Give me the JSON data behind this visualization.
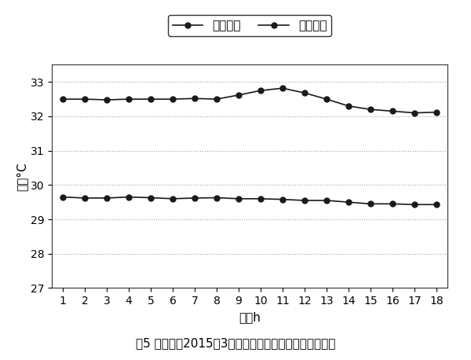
{
  "hours": [
    1,
    2,
    3,
    4,
    5,
    6,
    7,
    8,
    9,
    10,
    11,
    12,
    13,
    14,
    15,
    16,
    17,
    18
  ],
  "supply_temp": [
    32.5,
    32.5,
    32.48,
    32.5,
    32.5,
    32.5,
    32.52,
    32.5,
    32.62,
    32.75,
    32.82,
    32.68,
    32.5,
    32.3,
    32.2,
    32.15,
    32.1,
    32.12
  ],
  "return_temp": [
    29.65,
    29.62,
    29.62,
    29.65,
    29.63,
    29.6,
    29.62,
    29.63,
    29.6,
    29.6,
    29.58,
    29.55,
    29.55,
    29.5,
    29.45,
    29.45,
    29.43,
    29.43
  ],
  "supply_label": "供水温度",
  "return_label": "回水温度",
  "ylabel": "温度°C",
  "xlabel": "时间h",
  "ylim_min": 27,
  "ylim_max": 33.5,
  "yticks": [
    27,
    28,
    29,
    30,
    31,
    32,
    33
  ],
  "caption": "图5 采暖月（2015年3月）某测试日供回水温度变化情况",
  "line_color": "#1a1a1a",
  "grid_color": "#999999",
  "bg_color": "#ffffff",
  "marker_size": 5,
  "line_width": 1.2,
  "axis_fontsize": 11,
  "tick_fontsize": 10,
  "caption_fontsize": 11,
  "legend_fontsize": 11
}
